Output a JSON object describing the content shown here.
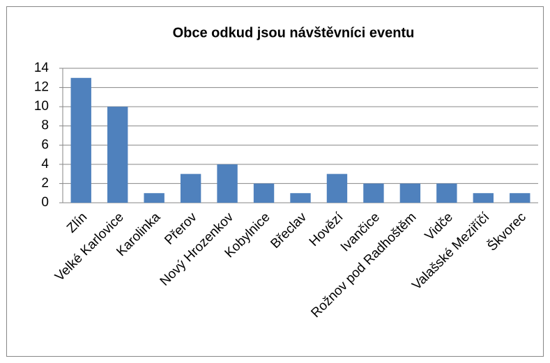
{
  "chart_data": {
    "type": "bar",
    "title": "Obce odkud jsou návštěvníci eventu",
    "categories": [
      "Zlín",
      "Velké Karlovice",
      "Karolinka",
      "Přerov",
      "Nový Hrozenkov",
      "Kobylnice",
      "Břeclav",
      "Hovězí",
      "Ivančice",
      "Rožnov pod Radhoštěm",
      "Vidče",
      "Valašské Meziříčí",
      "Škvorec"
    ],
    "values": [
      13,
      10,
      1,
      3,
      4,
      2,
      1,
      3,
      2,
      2,
      2,
      1,
      1
    ],
    "color": "#4f81bd",
    "ylim": [
      0,
      14
    ],
    "yticks": [
      0,
      2,
      4,
      6,
      8,
      10,
      12,
      14
    ],
    "grid": true
  }
}
